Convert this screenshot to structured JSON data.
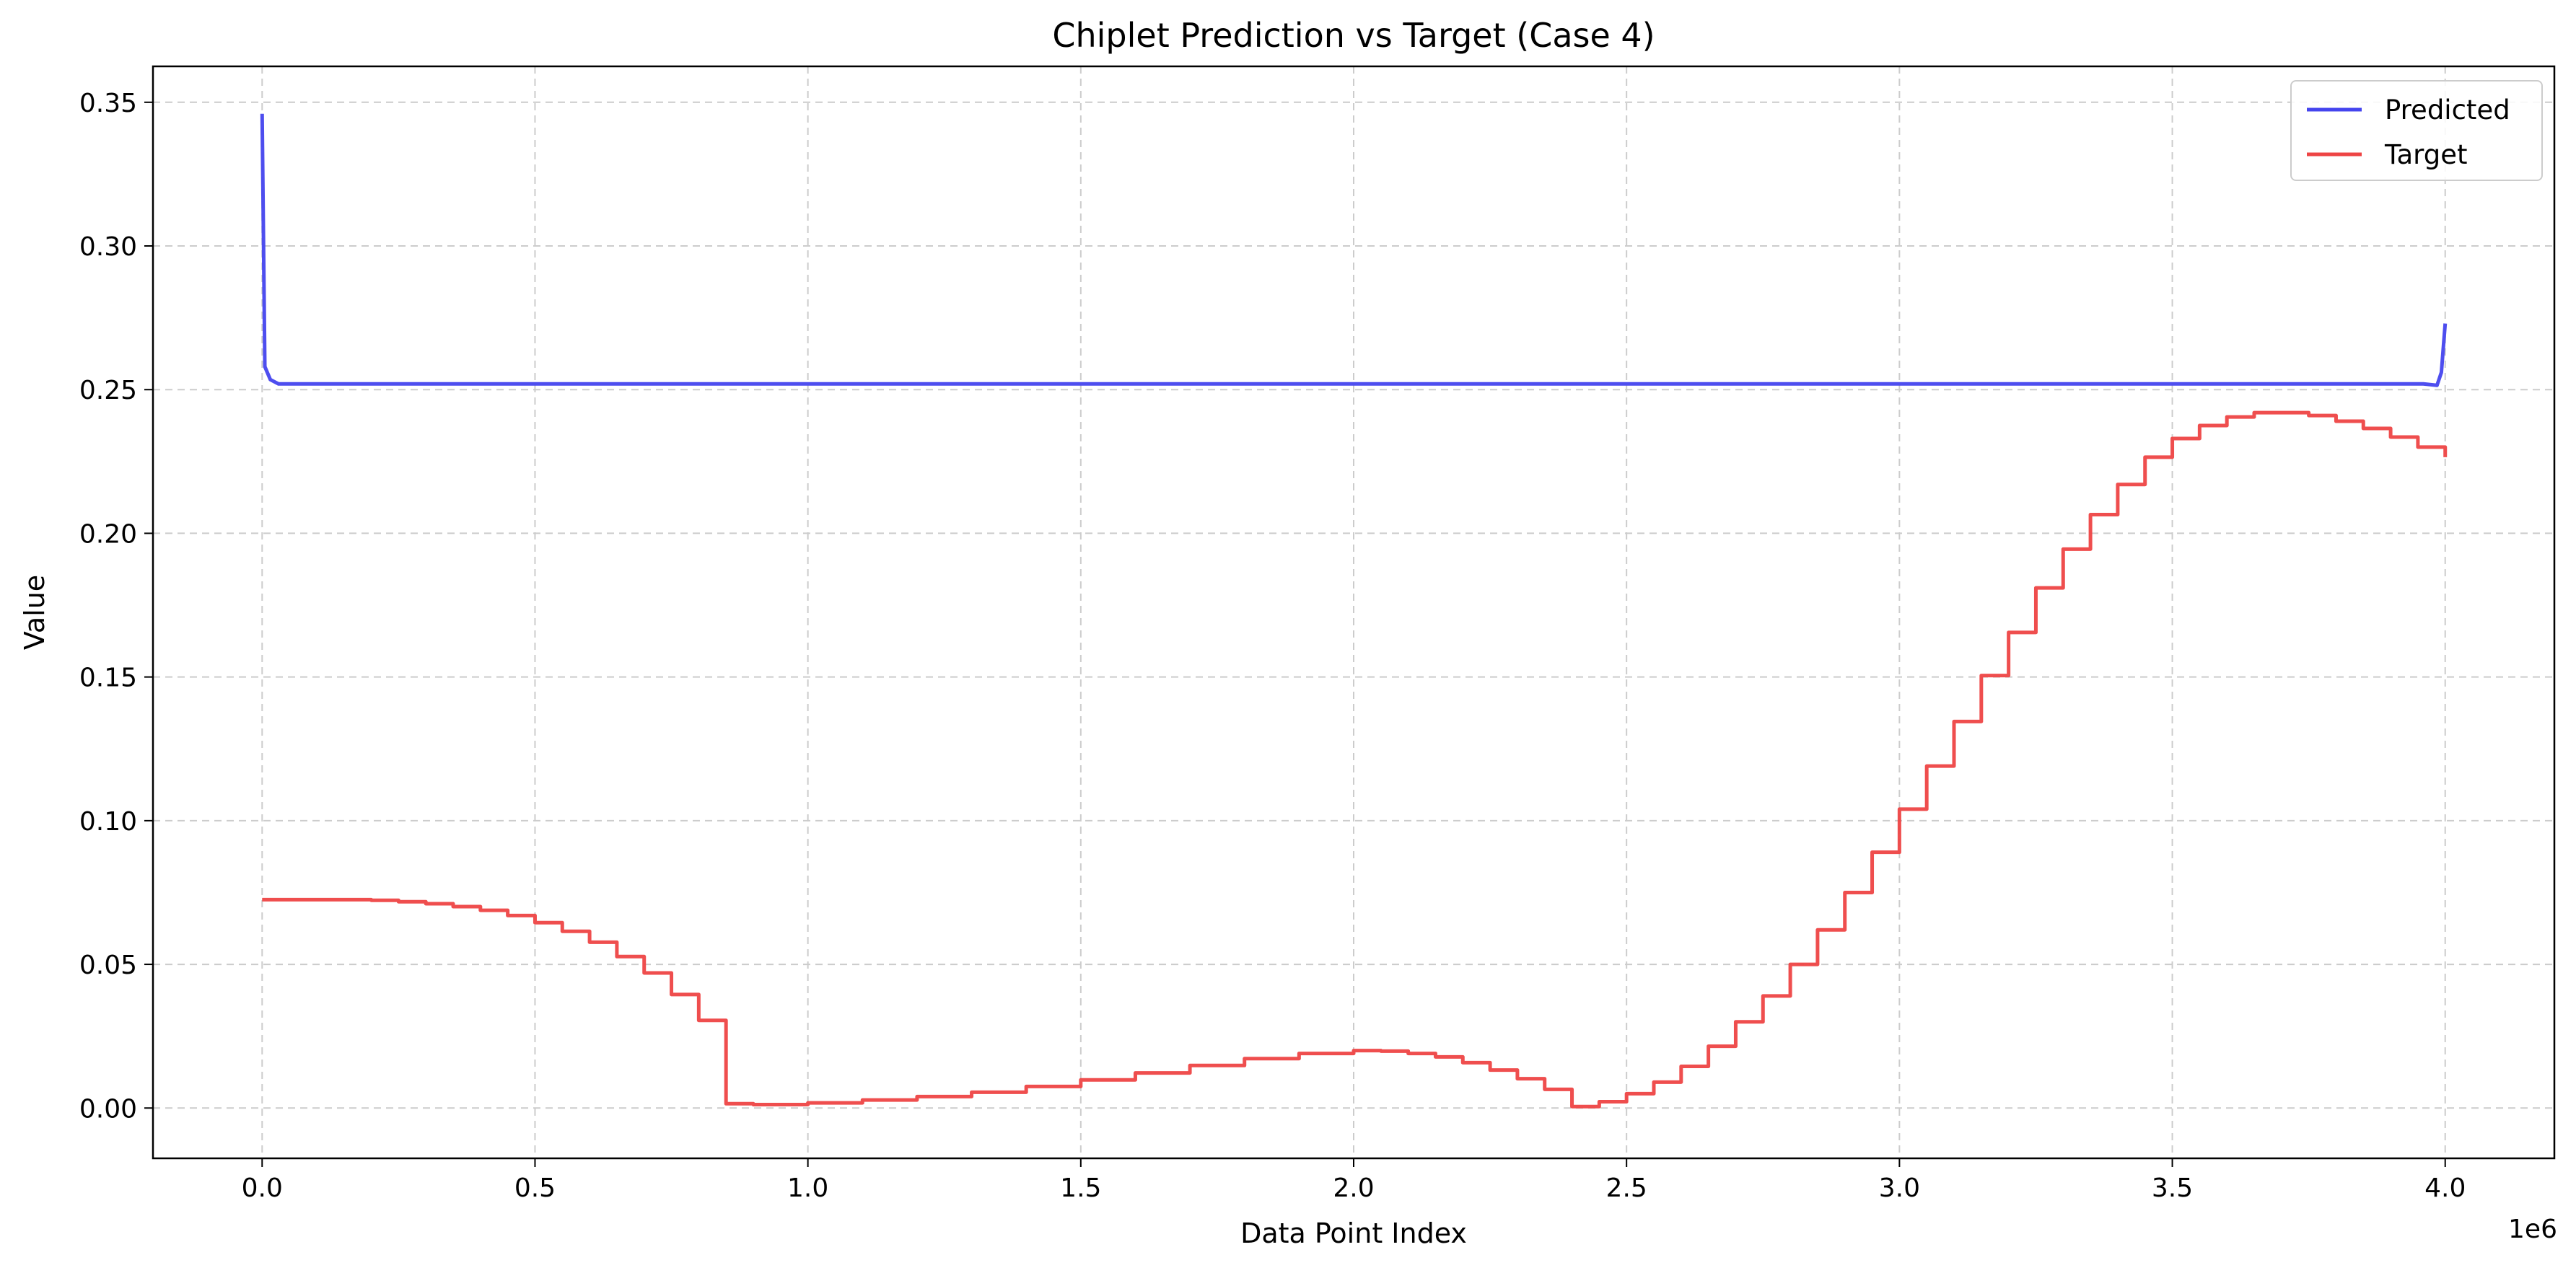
{
  "chart_data": {
    "type": "line",
    "title": "Chiplet Prediction vs Target (Case 4)",
    "xlabel": "Data Point Index",
    "ylabel": "Value",
    "x_offset_label": "1e6",
    "xlim": [
      -0.2,
      4.2
    ],
    "ylim": [
      -0.0175,
      0.3625
    ],
    "x_ticks": [
      0.0,
      0.5,
      1.0,
      1.5,
      2.0,
      2.5,
      3.0,
      3.5,
      4.0
    ],
    "x_tick_labels": [
      "0.0",
      "0.5",
      "1.0",
      "1.5",
      "2.0",
      "2.5",
      "3.0",
      "3.5",
      "4.0"
    ],
    "y_ticks": [
      0.0,
      0.05,
      0.1,
      0.15,
      0.2,
      0.25,
      0.3,
      0.35
    ],
    "y_tick_labels": [
      "0.00",
      "0.05",
      "0.10",
      "0.15",
      "0.20",
      "0.25",
      "0.30",
      "0.35"
    ],
    "grid": true,
    "legend_position": "top-right",
    "series": [
      {
        "name": "Predicted",
        "color": "#4444ee",
        "x": [
          0.0,
          0.005,
          0.015,
          0.03,
          1.0,
          2.0,
          3.0,
          3.96,
          3.985,
          3.993,
          4.0
        ],
        "y": [
          0.346,
          0.258,
          0.2535,
          0.252,
          0.252,
          0.252,
          0.252,
          0.252,
          0.2515,
          0.256,
          0.273
        ]
      },
      {
        "name": "Target",
        "color": "#ee4444",
        "x": [
          0.0,
          0.1,
          0.2,
          0.25,
          0.3,
          0.35,
          0.4,
          0.45,
          0.5,
          0.55,
          0.6,
          0.65,
          0.7,
          0.75,
          0.8,
          0.85,
          0.9,
          1.0,
          1.1,
          1.2,
          1.3,
          1.4,
          1.5,
          1.6,
          1.7,
          1.8,
          1.9,
          2.0,
          2.05,
          2.1,
          2.15,
          2.2,
          2.25,
          2.3,
          2.35,
          2.4,
          2.45,
          2.5,
          2.55,
          2.6,
          2.65,
          2.7,
          2.75,
          2.8,
          2.85,
          2.9,
          2.95,
          3.0,
          3.05,
          3.1,
          3.15,
          3.2,
          3.25,
          3.3,
          3.35,
          3.4,
          3.45,
          3.5,
          3.55,
          3.6,
          3.65,
          3.7,
          3.75,
          3.8,
          3.85,
          3.9,
          3.95,
          4.0
        ],
        "y": [
          0.0725,
          0.0725,
          0.0723,
          0.0718,
          0.0711,
          0.0701,
          0.0688,
          0.067,
          0.0645,
          0.0615,
          0.0577,
          0.0527,
          0.047,
          0.0395,
          0.0305,
          0.0015,
          0.0012,
          0.0018,
          0.0028,
          0.004,
          0.0055,
          0.0075,
          0.0098,
          0.0122,
          0.0148,
          0.0172,
          0.019,
          0.02,
          0.0198,
          0.019,
          0.0178,
          0.0158,
          0.0132,
          0.0102,
          0.0065,
          0.0005,
          0.0022,
          0.005,
          0.009,
          0.0145,
          0.0215,
          0.03,
          0.039,
          0.05,
          0.062,
          0.075,
          0.089,
          0.104,
          0.119,
          0.1345,
          0.1505,
          0.1655,
          0.181,
          0.1945,
          0.2065,
          0.217,
          0.2265,
          0.233,
          0.2375,
          0.2405,
          0.242,
          0.242,
          0.241,
          0.239,
          0.2365,
          0.2335,
          0.23,
          0.2265
        ]
      }
    ]
  }
}
